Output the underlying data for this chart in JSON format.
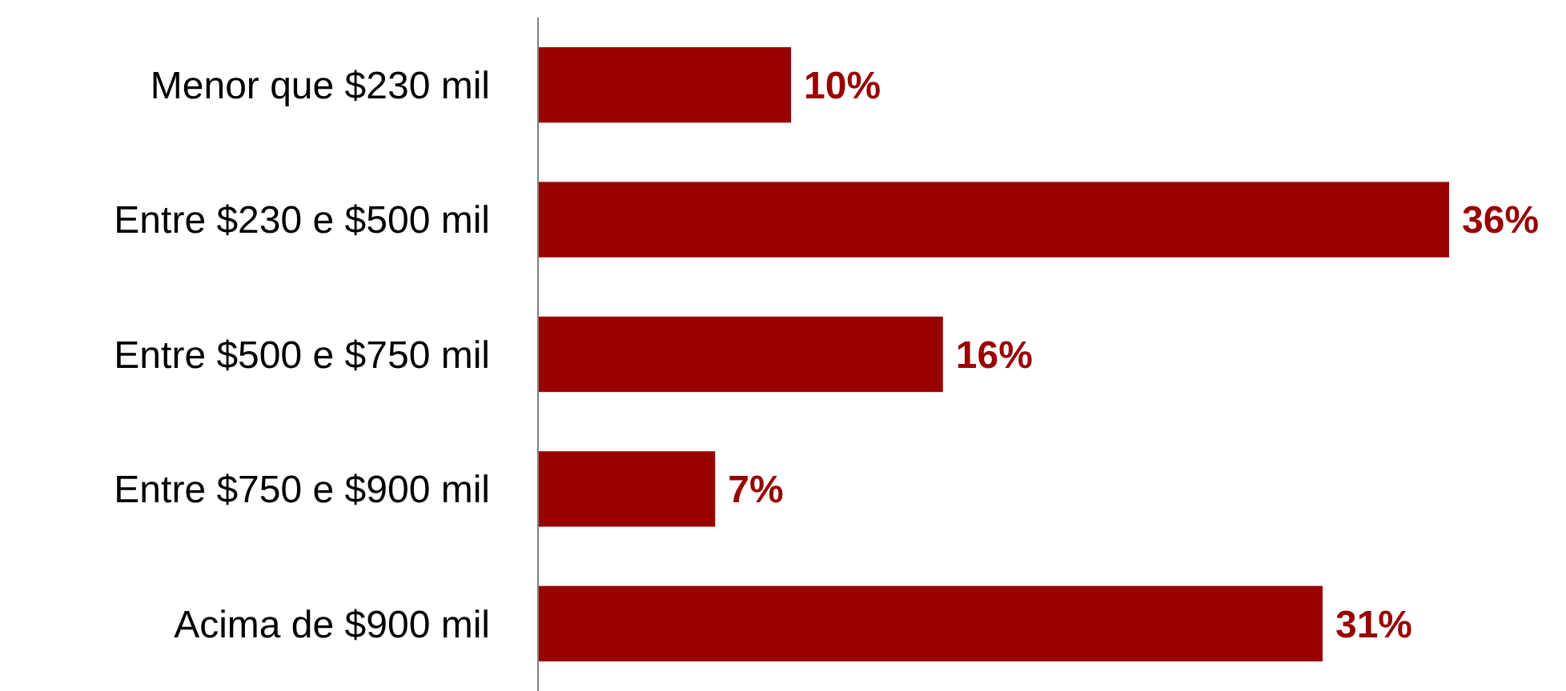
{
  "chart_data": {
    "type": "bar",
    "orientation": "horizontal",
    "categories": [
      "Menor que $230 mil",
      "Entre $230 e $500 mil",
      "Entre $500 e $750 mil",
      "Entre $750 e $900 mil",
      "Acima de $900 mil"
    ],
    "values": [
      10,
      36,
      16,
      7,
      31
    ],
    "color": "#990000",
    "value_labels": [
      "10%",
      "36%",
      "16%",
      "7%",
      "31%"
    ]
  }
}
